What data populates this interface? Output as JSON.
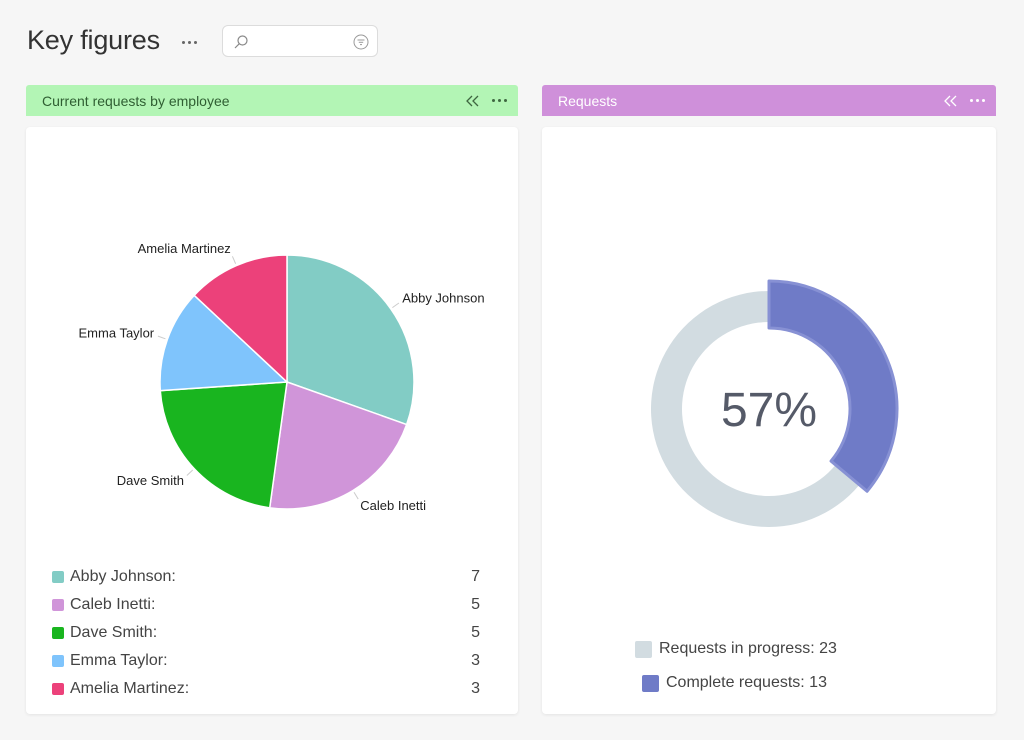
{
  "page": {
    "title": "Key figures"
  },
  "search": {
    "value": "",
    "placeholder": ""
  },
  "panels": {
    "employees": {
      "title": "Current requests by employee"
    },
    "requests": {
      "title": "Requests"
    }
  },
  "colors": {
    "header_green": "#b3f5b5",
    "header_purple": "#cf90da",
    "donut_progress": "#d2dce1",
    "donut_complete": "#6f7bc7"
  },
  "chart_data": [
    {
      "type": "pie",
      "categories": [
        "Abby Johnson",
        "Caleb Inetti",
        "Dave Smith",
        "Emma Taylor",
        "Amelia Martinez"
      ],
      "values": [
        7,
        5,
        5,
        3,
        3
      ],
      "colors": [
        "#82ccc5",
        "#d095d9",
        "#19b51f",
        "#7fc4fc",
        "#ec417a"
      ],
      "legend": [
        {
          "label": "Abby Johnson:",
          "value": "7"
        },
        {
          "label": "Caleb Inetti:",
          "value": "5"
        },
        {
          "label": "Dave Smith:",
          "value": "5"
        },
        {
          "label": "Emma Taylor:",
          "value": "3"
        },
        {
          "label": "Amelia Martinez:",
          "value": "3"
        }
      ],
      "legend_placement": "bottom"
    },
    {
      "type": "pie",
      "variant": "donut",
      "center_label": "57%",
      "categories": [
        "Requests in progress",
        "Complete requests"
      ],
      "values": [
        23,
        13
      ],
      "colors": [
        "#d2dce1",
        "#6f7bc7"
      ],
      "legend": [
        {
          "label": "Requests in progress: 23"
        },
        {
          "label": "Complete requests: 13"
        }
      ],
      "legend_placement": "bottom"
    }
  ]
}
